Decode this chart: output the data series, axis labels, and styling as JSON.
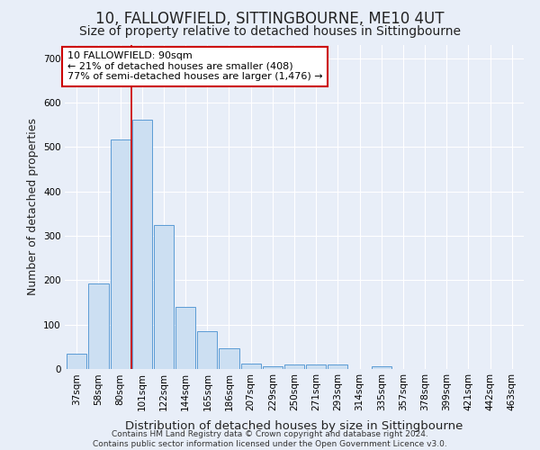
{
  "title1": "10, FALLOWFIELD, SITTINGBOURNE, ME10 4UT",
  "title2": "Size of property relative to detached houses in Sittingbourne",
  "xlabel": "Distribution of detached houses by size in Sittingbourne",
  "ylabel": "Number of detached properties",
  "footer1": "Contains HM Land Registry data © Crown copyright and database right 2024.",
  "footer2": "Contains public sector information licensed under the Open Government Licence v3.0.",
  "categories": [
    "37sqm",
    "58sqm",
    "80sqm",
    "101sqm",
    "122sqm",
    "144sqm",
    "165sqm",
    "186sqm",
    "207sqm",
    "229sqm",
    "250sqm",
    "271sqm",
    "293sqm",
    "314sqm",
    "335sqm",
    "357sqm",
    "378sqm",
    "399sqm",
    "421sqm",
    "442sqm",
    "463sqm"
  ],
  "values": [
    35,
    192,
    518,
    562,
    325,
    140,
    86,
    46,
    13,
    7,
    10,
    10,
    10,
    0,
    6,
    0,
    0,
    0,
    0,
    0,
    0
  ],
  "bar_color": "#ccdff2",
  "bar_edge_color": "#5b9bd5",
  "vline_x_index": 2.5,
  "vline_color": "#cc0000",
  "annotation_line1": "10 FALLOWFIELD: 90sqm",
  "annotation_line2": "← 21% of detached houses are smaller (408)",
  "annotation_line3": "77% of semi-detached houses are larger (1,476) →",
  "annotation_box_color": "white",
  "annotation_box_edge_color": "#cc0000",
  "ylim": [
    0,
    730
  ],
  "yticks": [
    0,
    100,
    200,
    300,
    400,
    500,
    600,
    700
  ],
  "bg_color": "#e8eef8",
  "plot_bg_color": "#e8eef8",
  "title1_fontsize": 12,
  "title2_fontsize": 10,
  "tick_fontsize": 7.5,
  "ylabel_fontsize": 9,
  "xlabel_fontsize": 9.5,
  "footer_fontsize": 6.5
}
